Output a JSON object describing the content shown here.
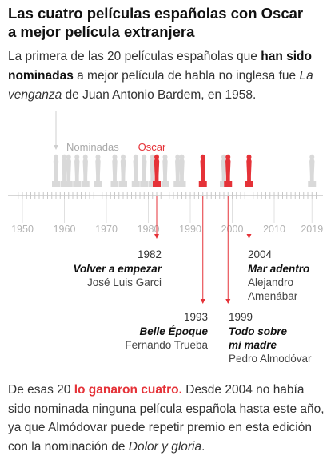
{
  "header": {
    "title_line1": "Las cuatro películas españolas con Oscar",
    "title_line2": "a mejor película extranjera"
  },
  "intro": {
    "t1": "La primera de las  20 películas españolas que ",
    "t2": "han sido nominadas",
    "t3": " a mejor película de habla no inglesa fue ",
    "t4": "La venganza",
    "t5": " de Juan Antonio Bardem, en 1958."
  },
  "outro": {
    "t1": "De esas 20 ",
    "t2": "lo ganaron cuatro.",
    "t3": " Desde 2004 no había sido nominada ninguna película española  hasta este año, ya que Almódovar puede repetir premio en esta edición con la nominación de ",
    "t4": "Dolor y gloria",
    "t5": "."
  },
  "colors": {
    "nominated": "#d9d9d9",
    "winner": "#e53238",
    "axis": "#c8c8c8",
    "text": "#222222"
  },
  "chart_data": {
    "type": "timeline",
    "xlim": [
      1949,
      2020
    ],
    "tick_labels": [
      "1950",
      "1960",
      "1970",
      "1980",
      "1990",
      "2000",
      "2010",
      "2019"
    ],
    "tick_values": [
      1950,
      1960,
      1970,
      1980,
      1990,
      2000,
      2010,
      2019
    ],
    "legend": {
      "nominated": "Nominadas",
      "winner": "Oscar"
    },
    "nominated_years": [
      1958,
      1960,
      1961,
      1963,
      1965,
      1968,
      1972,
      1974,
      1977,
      1979,
      1981,
      1984,
      1987,
      1988,
      1998,
      2019
    ],
    "winners": [
      {
        "year": "1982",
        "title": "Volver a empezar",
        "director": [
          "José Luis Garci"
        ]
      },
      {
        "year": "1993",
        "title": "Belle Époque",
        "director": [
          "Fernando Trueba"
        ]
      },
      {
        "year": "1999",
        "title_lines": [
          "Todo sobre",
          "mi madre"
        ],
        "director": [
          "Pedro Almodóvar"
        ]
      },
      {
        "year": "2004",
        "title": "Mar adentro",
        "director": [
          "Alejandro",
          "Amenábar"
        ]
      }
    ]
  }
}
